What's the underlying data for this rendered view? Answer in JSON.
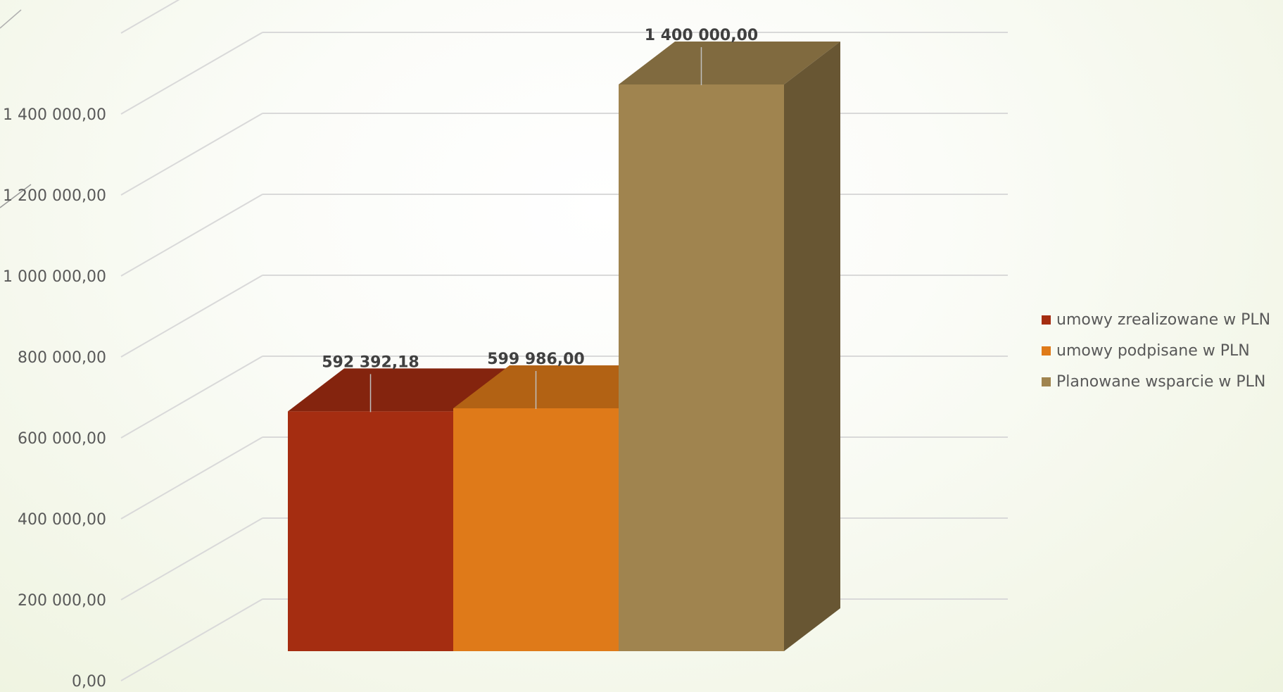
{
  "chart_data": {
    "type": "bar",
    "style": "3d-column",
    "categories": [
      ""
    ],
    "series": [
      {
        "name": "umowy zrealizowane w PLN",
        "values": [
          592392.18
        ],
        "label": "592 392,18",
        "color": "#A52D11"
      },
      {
        "name": "umowy podpisane w PLN",
        "values": [
          599986.0
        ],
        "label": "599 986,00",
        "color": "#DF7A19"
      },
      {
        "name": "Planowane wsparcie w PLN",
        "values": [
          1400000.0
        ],
        "label": "1 400 000,00",
        "color": "#A0844F"
      }
    ],
    "y_ticks": [
      {
        "value": 0,
        "label": "0,00"
      },
      {
        "value": 200000,
        "label": "200 000,00"
      },
      {
        "value": 400000,
        "label": "400 000,00"
      },
      {
        "value": 600000,
        "label": "600 000,00"
      },
      {
        "value": 800000,
        "label": "800 000,00"
      },
      {
        "value": 1000000,
        "label": "1 000 000,00"
      },
      {
        "value": 1200000,
        "label": "1 200 000,00"
      },
      {
        "value": 1400000,
        "label": "1 400 000,00"
      }
    ],
    "ylim": [
      0,
      1600000
    ],
    "title": "",
    "xlabel": "",
    "ylabel": "",
    "grid": true,
    "legend_position": "right"
  }
}
